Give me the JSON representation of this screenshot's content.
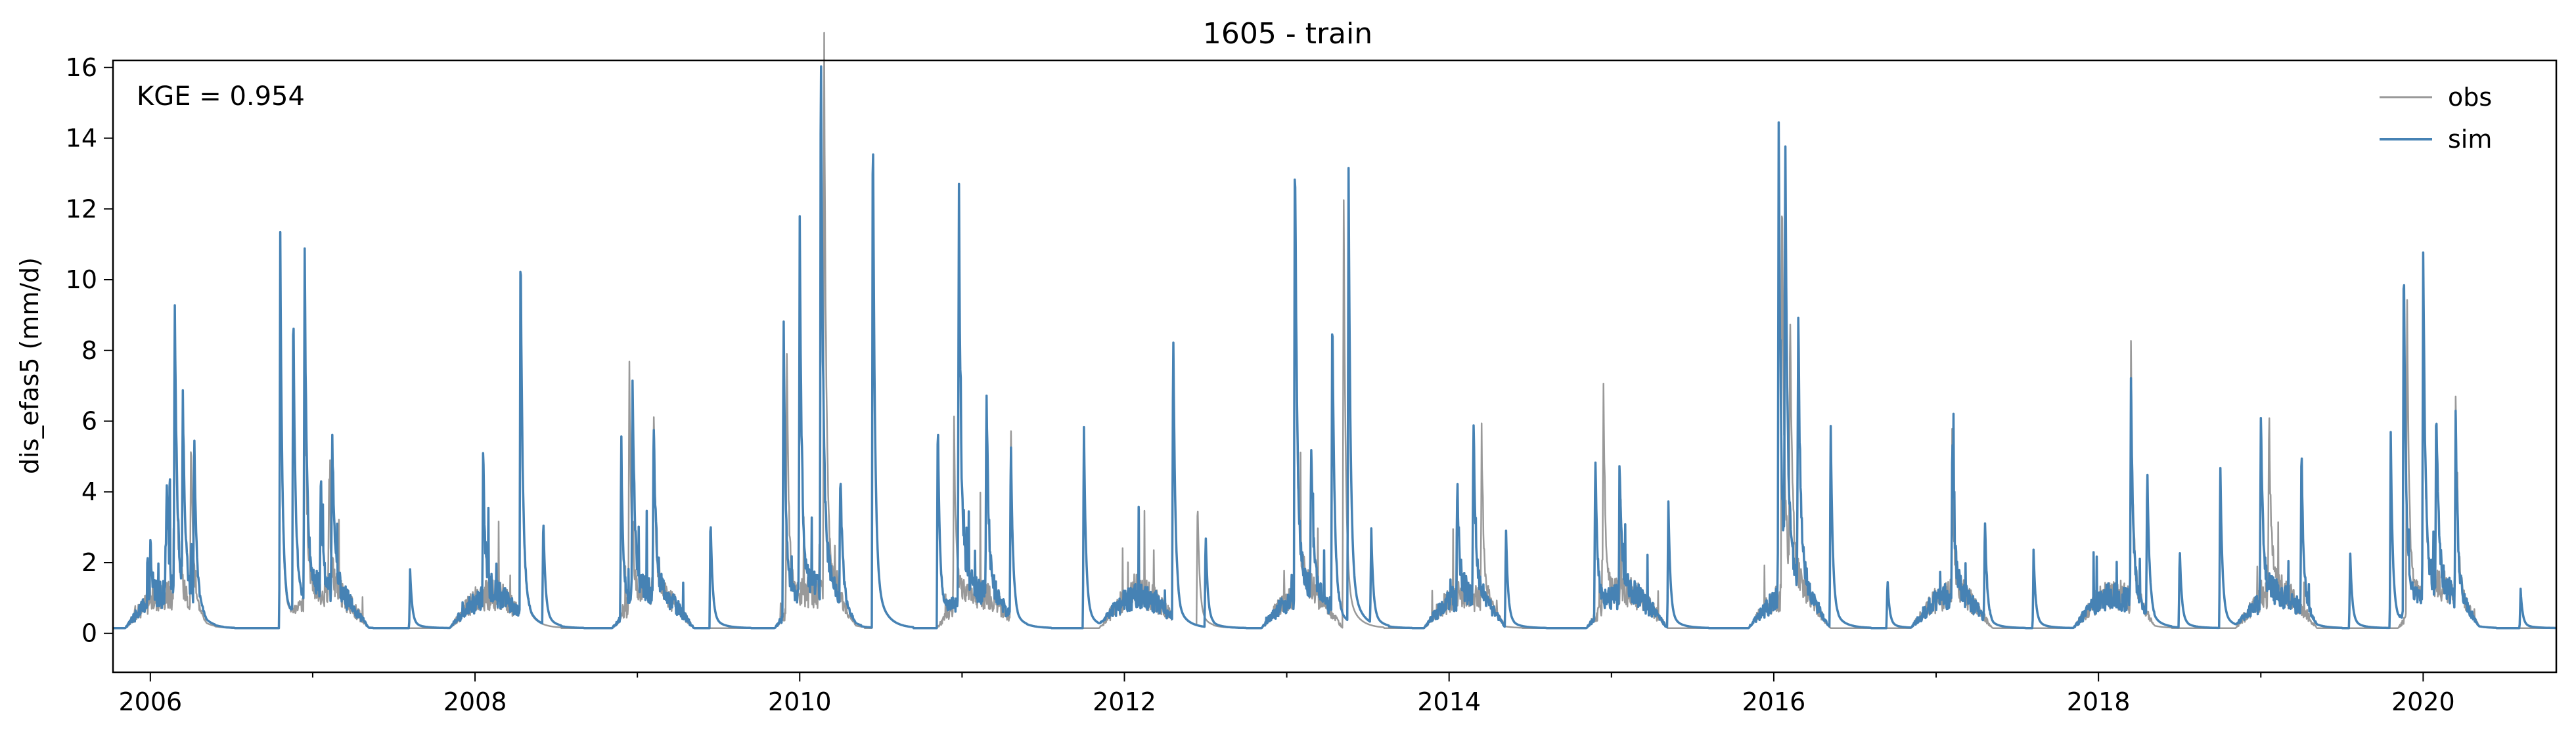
{
  "chart_data": {
    "type": "line",
    "title": "1605 - train",
    "xlabel": "",
    "ylabel": "dis_efas5 (mm/d)",
    "annotation": "KGE = 0.954",
    "xlim": [
      2005.77,
      2020.82
    ],
    "ylim": [
      -1.1,
      16.2
    ],
    "x_ticks": [
      2006,
      2008,
      2010,
      2012,
      2014,
      2016,
      2018,
      2020
    ],
    "x_tick_labels": [
      "2006",
      "2008",
      "2010",
      "2012",
      "2014",
      "2016",
      "2018",
      "2020"
    ],
    "y_ticks": [
      0,
      2,
      4,
      6,
      8,
      10,
      12,
      14,
      16
    ],
    "y_tick_labels": [
      "0",
      "2",
      "4",
      "6",
      "8",
      "10",
      "12",
      "14",
      "16"
    ],
    "grid": false,
    "legend_position": "top-right",
    "base_flow": 0.15,
    "series": [
      {
        "name": "obs",
        "color": "#999999",
        "peaks": [
          [
            2006.15,
            7.5
          ],
          [
            2006.25,
            4.5
          ],
          [
            2006.8,
            9.0
          ],
          [
            2006.95,
            7.0
          ],
          [
            2007.1,
            3.0
          ],
          [
            2008.28,
            9.5
          ],
          [
            2008.95,
            6.4
          ],
          [
            2009.1,
            4.8
          ],
          [
            2009.92,
            7.0
          ],
          [
            2010.15,
            15.0
          ],
          [
            2010.45,
            13.5
          ],
          [
            2010.95,
            5.0
          ],
          [
            2011.3,
            5.2
          ],
          [
            2012.3,
            7.5
          ],
          [
            2012.45,
            3.4
          ],
          [
            2013.05,
            11.5
          ],
          [
            2013.35,
            11.5
          ],
          [
            2014.2,
            4.5
          ],
          [
            2014.95,
            5.9
          ],
          [
            2016.05,
            11.5
          ],
          [
            2016.1,
            7.0
          ],
          [
            2017.1,
            3.0
          ],
          [
            2018.2,
            6.4
          ],
          [
            2019.05,
            4.9
          ],
          [
            2019.9,
            9.0
          ],
          [
            2020.0,
            8.5
          ],
          [
            2020.2,
            5.2
          ]
        ]
      },
      {
        "name": "sim",
        "color": "#4682b4",
        "peaks": [
          [
            2006.0,
            1.5
          ],
          [
            2006.1,
            3.3
          ],
          [
            2006.15,
            8.0
          ],
          [
            2006.2,
            5.0
          ],
          [
            2006.27,
            4.5
          ],
          [
            2006.8,
            10.1
          ],
          [
            2006.88,
            8.4
          ],
          [
            2006.95,
            9.3
          ],
          [
            2007.05,
            3.0
          ],
          [
            2007.12,
            4.4
          ],
          [
            2007.6,
            1.5
          ],
          [
            2008.05,
            3.6
          ],
          [
            2008.28,
            10.3
          ],
          [
            2008.42,
            2.9
          ],
          [
            2008.9,
            4.5
          ],
          [
            2008.97,
            6.0
          ],
          [
            2009.1,
            4.7
          ],
          [
            2009.45,
            3.0
          ],
          [
            2009.9,
            8.3
          ],
          [
            2010.0,
            9.5
          ],
          [
            2010.13,
            15.4
          ],
          [
            2010.25,
            3.7
          ],
          [
            2010.45,
            14.1
          ],
          [
            2010.85,
            5.7
          ],
          [
            2010.98,
            11.1
          ],
          [
            2011.15,
            5.7
          ],
          [
            2011.3,
            4.8
          ],
          [
            2011.75,
            5.4
          ],
          [
            2012.3,
            7.9
          ],
          [
            2012.5,
            2.5
          ],
          [
            2013.05,
            12.6
          ],
          [
            2013.15,
            4.0
          ],
          [
            2013.28,
            8.4
          ],
          [
            2013.38,
            12.3
          ],
          [
            2013.52,
            2.5
          ],
          [
            2014.05,
            3.3
          ],
          [
            2014.15,
            4.9
          ],
          [
            2014.35,
            2.6
          ],
          [
            2014.9,
            4.5
          ],
          [
            2015.05,
            3.7
          ],
          [
            2015.35,
            3.4
          ],
          [
            2016.03,
            12.5
          ],
          [
            2016.07,
            11.5
          ],
          [
            2016.15,
            7.2
          ],
          [
            2016.35,
            5.4
          ],
          [
            2016.7,
            1.3
          ],
          [
            2017.1,
            4.5
          ],
          [
            2017.3,
            2.7
          ],
          [
            2017.6,
            2.0
          ],
          [
            2018.2,
            5.8
          ],
          [
            2018.3,
            4.0
          ],
          [
            2018.5,
            2.1
          ],
          [
            2018.75,
            4.3
          ],
          [
            2019.0,
            4.9
          ],
          [
            2019.25,
            4.3
          ],
          [
            2019.55,
            2.0
          ],
          [
            2019.8,
            5.0
          ],
          [
            2019.88,
            10.0
          ],
          [
            2020.0,
            9.0
          ],
          [
            2020.08,
            5.0
          ],
          [
            2020.2,
            4.7
          ],
          [
            2020.6,
            1.0
          ]
        ]
      }
    ]
  }
}
